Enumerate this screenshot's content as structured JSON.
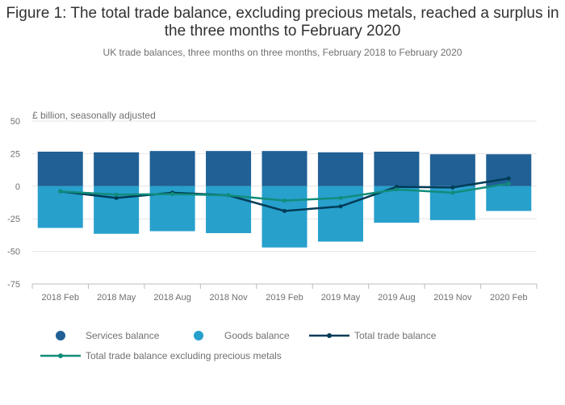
{
  "chart_data": {
    "type": "bar",
    "title": "Figure 1: The total trade balance, excluding precious metals, reached a surplus in the three months to February 2020",
    "subtitle": "UK trade balances, three months on three months, February 2018 to February 2020",
    "ylabel": "£ billion, seasonally adjusted",
    "ylim": [
      -75,
      50
    ],
    "yticks": [
      50,
      25,
      0,
      -25,
      -50,
      -75
    ],
    "categories": [
      "2018 Feb",
      "2018 May",
      "2018 Aug",
      "2018 Nov",
      "2019 Feb",
      "2019 May",
      "2019 Aug",
      "2019 Nov",
      "2020 Feb"
    ],
    "series": [
      {
        "name": "Services balance",
        "kind": "bar",
        "color": "#206095",
        "values": [
          26.5,
          26.0,
          27.0,
          27.0,
          27.0,
          26.0,
          26.5,
          24.5,
          24.5
        ]
      },
      {
        "name": "Goods balance",
        "kind": "bar",
        "color": "#27a0cc",
        "values": [
          -32.0,
          -36.5,
          -34.5,
          -36.0,
          -47.0,
          -42.5,
          -28.0,
          -26.0,
          -19.0
        ]
      },
      {
        "name": "Total trade balance",
        "kind": "line",
        "color": "#003c57",
        "values": [
          -4.0,
          -9.0,
          -5.0,
          -7.0,
          -19.0,
          -15.5,
          -0.5,
          -1.0,
          6.0
        ]
      },
      {
        "name": "Total trade balance excluding precious metals",
        "kind": "line",
        "color": "#118c7b",
        "values": [
          -4.0,
          -6.5,
          -6.0,
          -7.0,
          -11.0,
          -9.0,
          -2.5,
          -5.0,
          2.0
        ]
      }
    ]
  }
}
